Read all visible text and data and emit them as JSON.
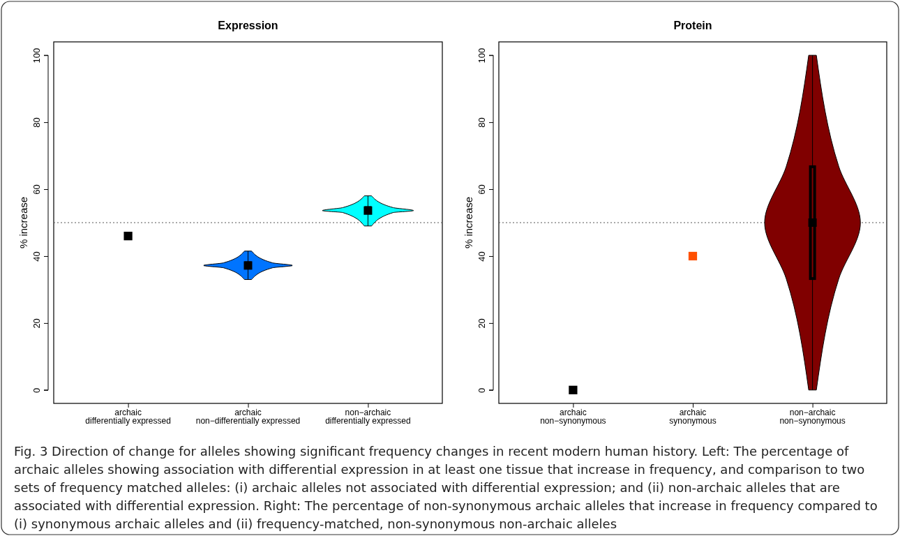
{
  "chart_data": [
    {
      "type": "box",
      "title": "Expression",
      "ylabel": "% increase",
      "categories": [
        "archaic\ndifferentially expressed",
        "archaic\nnon−differentially expressed",
        "non−archaic\ndifferentially expressed"
      ],
      "ylim": [
        -4,
        104
      ],
      "yticks": [
        0,
        20,
        40,
        60,
        80,
        100
      ],
      "series": [
        {
          "type": "box",
          "colors": [
            null,
            "#0074ff",
            "#00ffff"
          ],
          "boxes": [
            null,
            {
              "low": 33,
              "q1": 36.5,
              "median": 37.2,
              "q3": 38,
              "high": 41.5
            },
            {
              "low": 49,
              "q1": 53,
              "median": 53.6,
              "q3": 54.5,
              "high": 58
            }
          ]
        },
        {
          "type": "scatter",
          "x": [
            "archaic\ndifferentially expressed"
          ],
          "values": [
            46
          ],
          "colors": [
            "#000000"
          ],
          "marker": "square"
        }
      ],
      "ref_lines": [
        {
          "axis": "y",
          "value": 50,
          "line_style": "dotted",
          "color": "#555555"
        }
      ]
    },
    {
      "type": "box",
      "title": "Protein",
      "ylabel": "% increase",
      "categories": [
        "archaic\nnon−synonymous",
        "archaic\nsynonymous",
        "non−archaic\nnon−synonymous"
      ],
      "ylim": [
        -4,
        104
      ],
      "yticks": [
        0,
        20,
        40,
        60,
        80,
        100
      ],
      "series": [
        {
          "type": "box",
          "colors": [
            null,
            null,
            "#800000"
          ],
          "boxes": [
            null,
            null,
            {
              "low": 0,
              "q1": 33.3,
              "median": 50,
              "q3": 66.7,
              "high": 100
            }
          ]
        },
        {
          "type": "scatter",
          "x": [
            "archaic\nnon−synonymous",
            "archaic\nsynonymous"
          ],
          "values": [
            0,
            40
          ],
          "colors": [
            "#000000",
            "#ff5000"
          ],
          "marker": "square"
        }
      ],
      "ref_lines": [
        {
          "axis": "y",
          "value": 50,
          "line_style": "dotted",
          "color": "#555555"
        }
      ],
      "annotations": [
        "Fig. 3 Direction of change for alleles showing significant frequency changes in recent modern human history. Left: The percentage of archaic alleles showing association with differential expression in at least one tissue that increase in frequency, and comparison to two sets of frequency matched alleles: (i) archaic alleles not associated with differential expression; and (ii) non-archaic alleles that are associated with differential expression. Right: The percentage of non-synonymous archaic alleles that increase in frequency compared to (i) synonymous archaic alleles and (ii) frequency-matched, non-synonymous non-archaic alleles"
      ]
    }
  ]
}
